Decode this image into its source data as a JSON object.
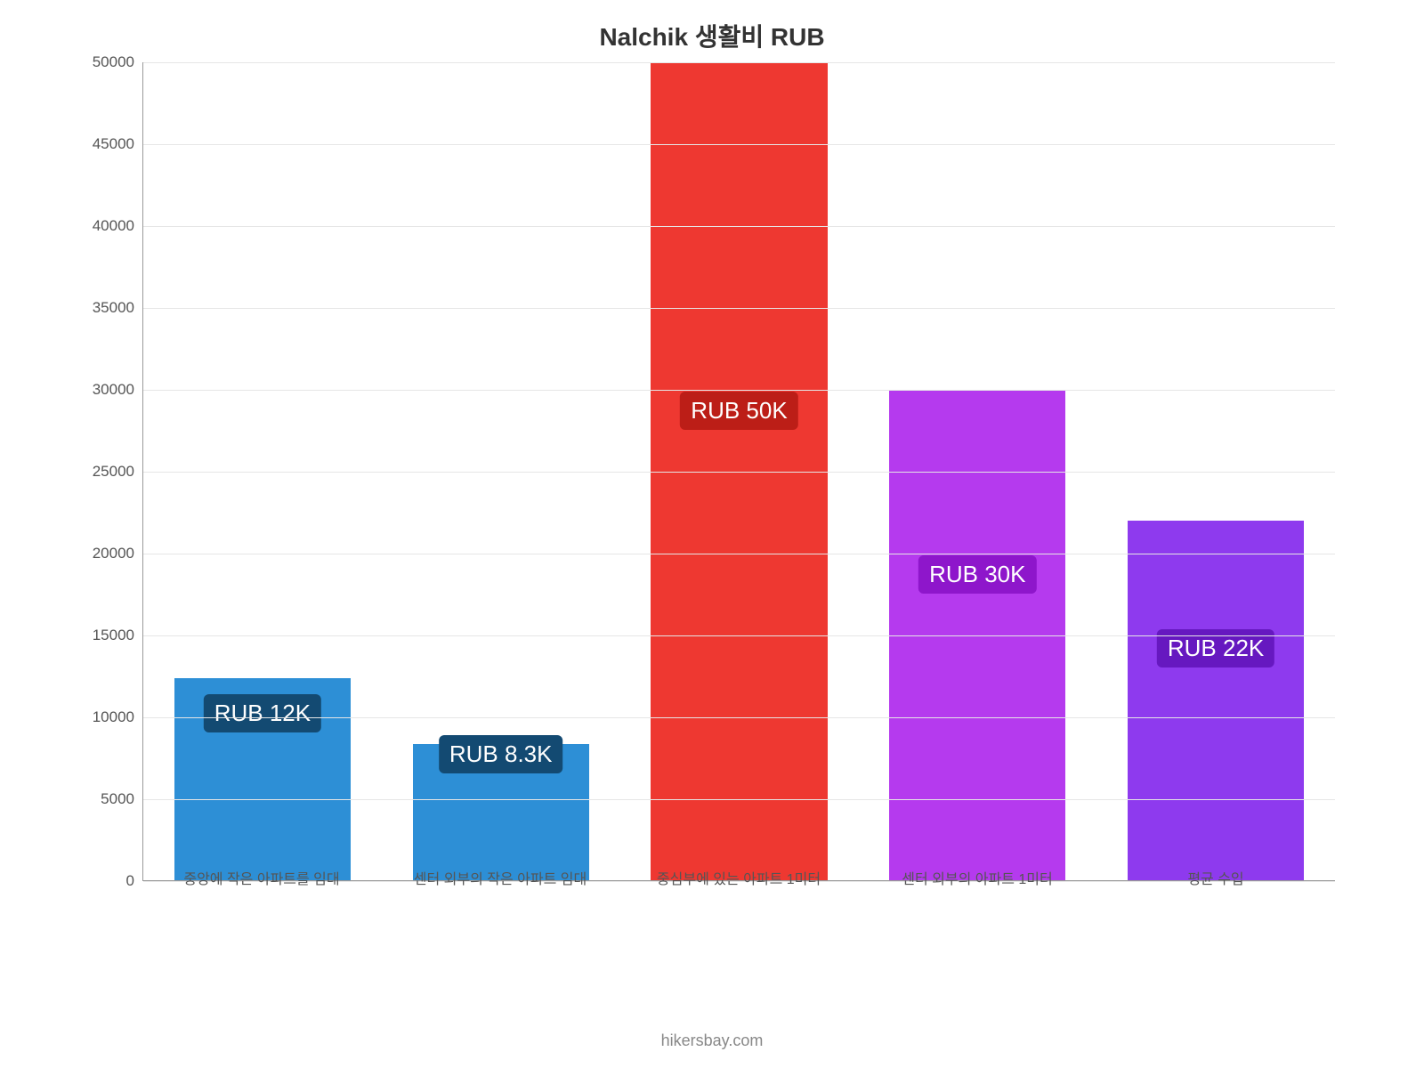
{
  "chart": {
    "type": "bar",
    "title": "Nalchik 생활비 RUB",
    "title_fontsize": 28,
    "title_color": "#333333",
    "background_color": "#ffffff",
    "grid_color": "#e6e6e6",
    "axis_color": "#999999",
    "ylim_min": 0,
    "ylim_max": 50000,
    "ytick_step": 5000,
    "ytick_fontsize": 17,
    "ytick_color": "#555555",
    "xtick_fontsize": 16,
    "xtick_color": "#555555",
    "bar_width_ratio": 0.74,
    "label_fontsize": 26,
    "bars": [
      {
        "category": "중앙에 작은 아파트를 임대",
        "value": 12333,
        "label": "RUB 12K",
        "bar_color": "#2d8fd6",
        "label_bg": "#134a72",
        "label_text_color": "#ffffff",
        "label_y_pct": 18
      },
      {
        "category": "센터 외부의 작은 아파트 임대",
        "value": 8333,
        "label": "RUB 8.3K",
        "bar_color": "#2d8fd6",
        "label_bg": "#134a72",
        "label_text_color": "#ffffff",
        "label_y_pct": 13
      },
      {
        "category": "중심부에 있는 아파트 1미터",
        "value": 50000,
        "label": "RUB 50K",
        "bar_color": "#ee3831",
        "label_bg": "#bc1e17",
        "label_text_color": "#ffffff",
        "label_y_pct": 55
      },
      {
        "category": "센터 외부의 아파트 1미터",
        "value": 30000,
        "label": "RUB 30K",
        "bar_color": "#b53aee",
        "label_bg": "#8e16cb",
        "label_text_color": "#ffffff",
        "label_y_pct": 35
      },
      {
        "category": "평균 수입",
        "value": 22000,
        "label": "RUB 22K",
        "bar_color": "#8e3aee",
        "label_bg": "#6618c0",
        "label_text_color": "#ffffff",
        "label_y_pct": 26
      }
    ],
    "attribution": "hikersbay.com",
    "attribution_fontsize": 18,
    "attribution_color": "#888888"
  }
}
